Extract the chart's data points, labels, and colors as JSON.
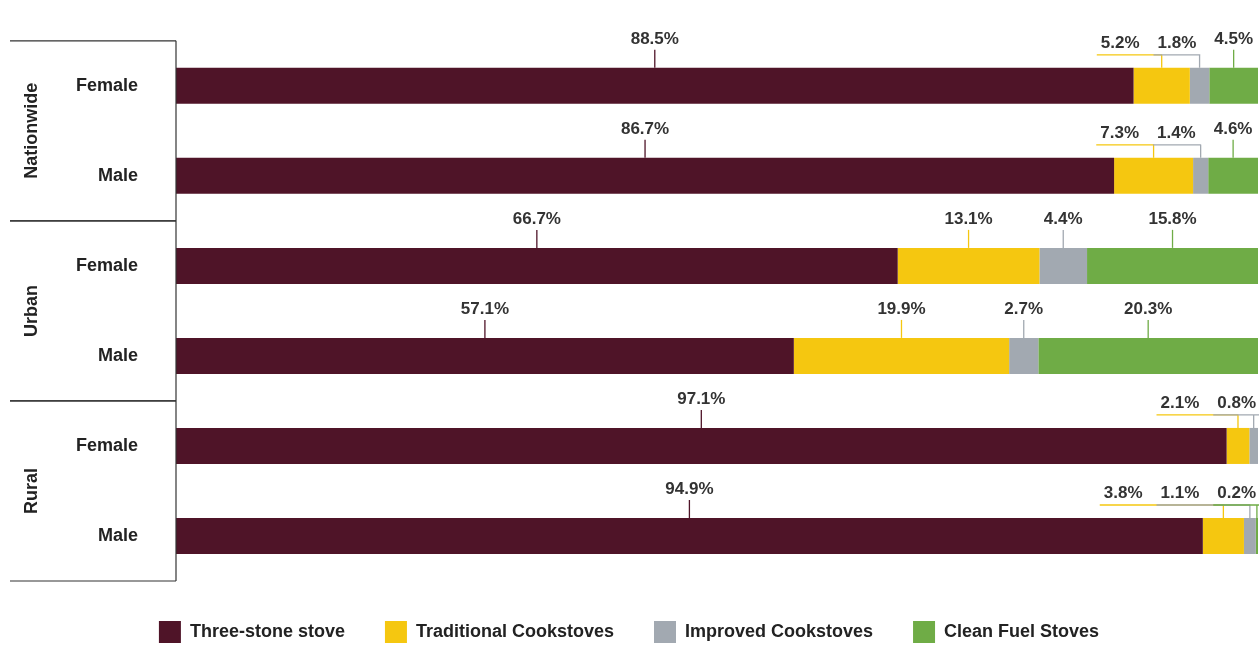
{
  "chart_data": {
    "type": "bar",
    "orientation": "horizontal",
    "stacked": true,
    "categories": [
      "Female",
      "Male",
      "Female",
      "Male",
      "Female",
      "Male"
    ],
    "annotations": [
      "Nationwide",
      "Urban",
      "Rural"
    ],
    "series": [
      {
        "name": "Three-stone stove",
        "color": "#4f1428",
        "values": [
          88.5,
          86.7,
          66.7,
          57.1,
          97.1,
          94.9
        ],
        "value_labels": [
          "88.5%",
          "86.7%",
          "66.7%",
          "57.1%",
          "97.1%",
          "94.9%"
        ]
      },
      {
        "name": "Traditional Cookstoves",
        "color": "#f5c710",
        "values": [
          5.2,
          7.3,
          13.1,
          19.9,
          2.1,
          3.8
        ],
        "value_labels": [
          "5.2%",
          "7.3%",
          "13.1%",
          "19.9%",
          "2.1%",
          "3.8%"
        ]
      },
      {
        "name": "Improved Cookstoves",
        "color": "#a2a9b1",
        "values": [
          1.8,
          1.4,
          4.4,
          2.7,
          0.8,
          1.1
        ],
        "value_labels": [
          "1.8%",
          "1.4%",
          "4.4%",
          "2.7%",
          "0.8%",
          "1.1%"
        ]
      },
      {
        "name": "Clean Fuel Stoves",
        "color": "#6fac46",
        "values": [
          4.5,
          4.6,
          15.8,
          20.3,
          null,
          0.2
        ],
        "value_labels": [
          "4.5%",
          "4.6%",
          "15.8%",
          "20.3%",
          null,
          "0.2%"
        ]
      }
    ],
    "xlim": [
      0,
      100
    ],
    "tick_labels": "y",
    "legend": "bottom"
  }
}
